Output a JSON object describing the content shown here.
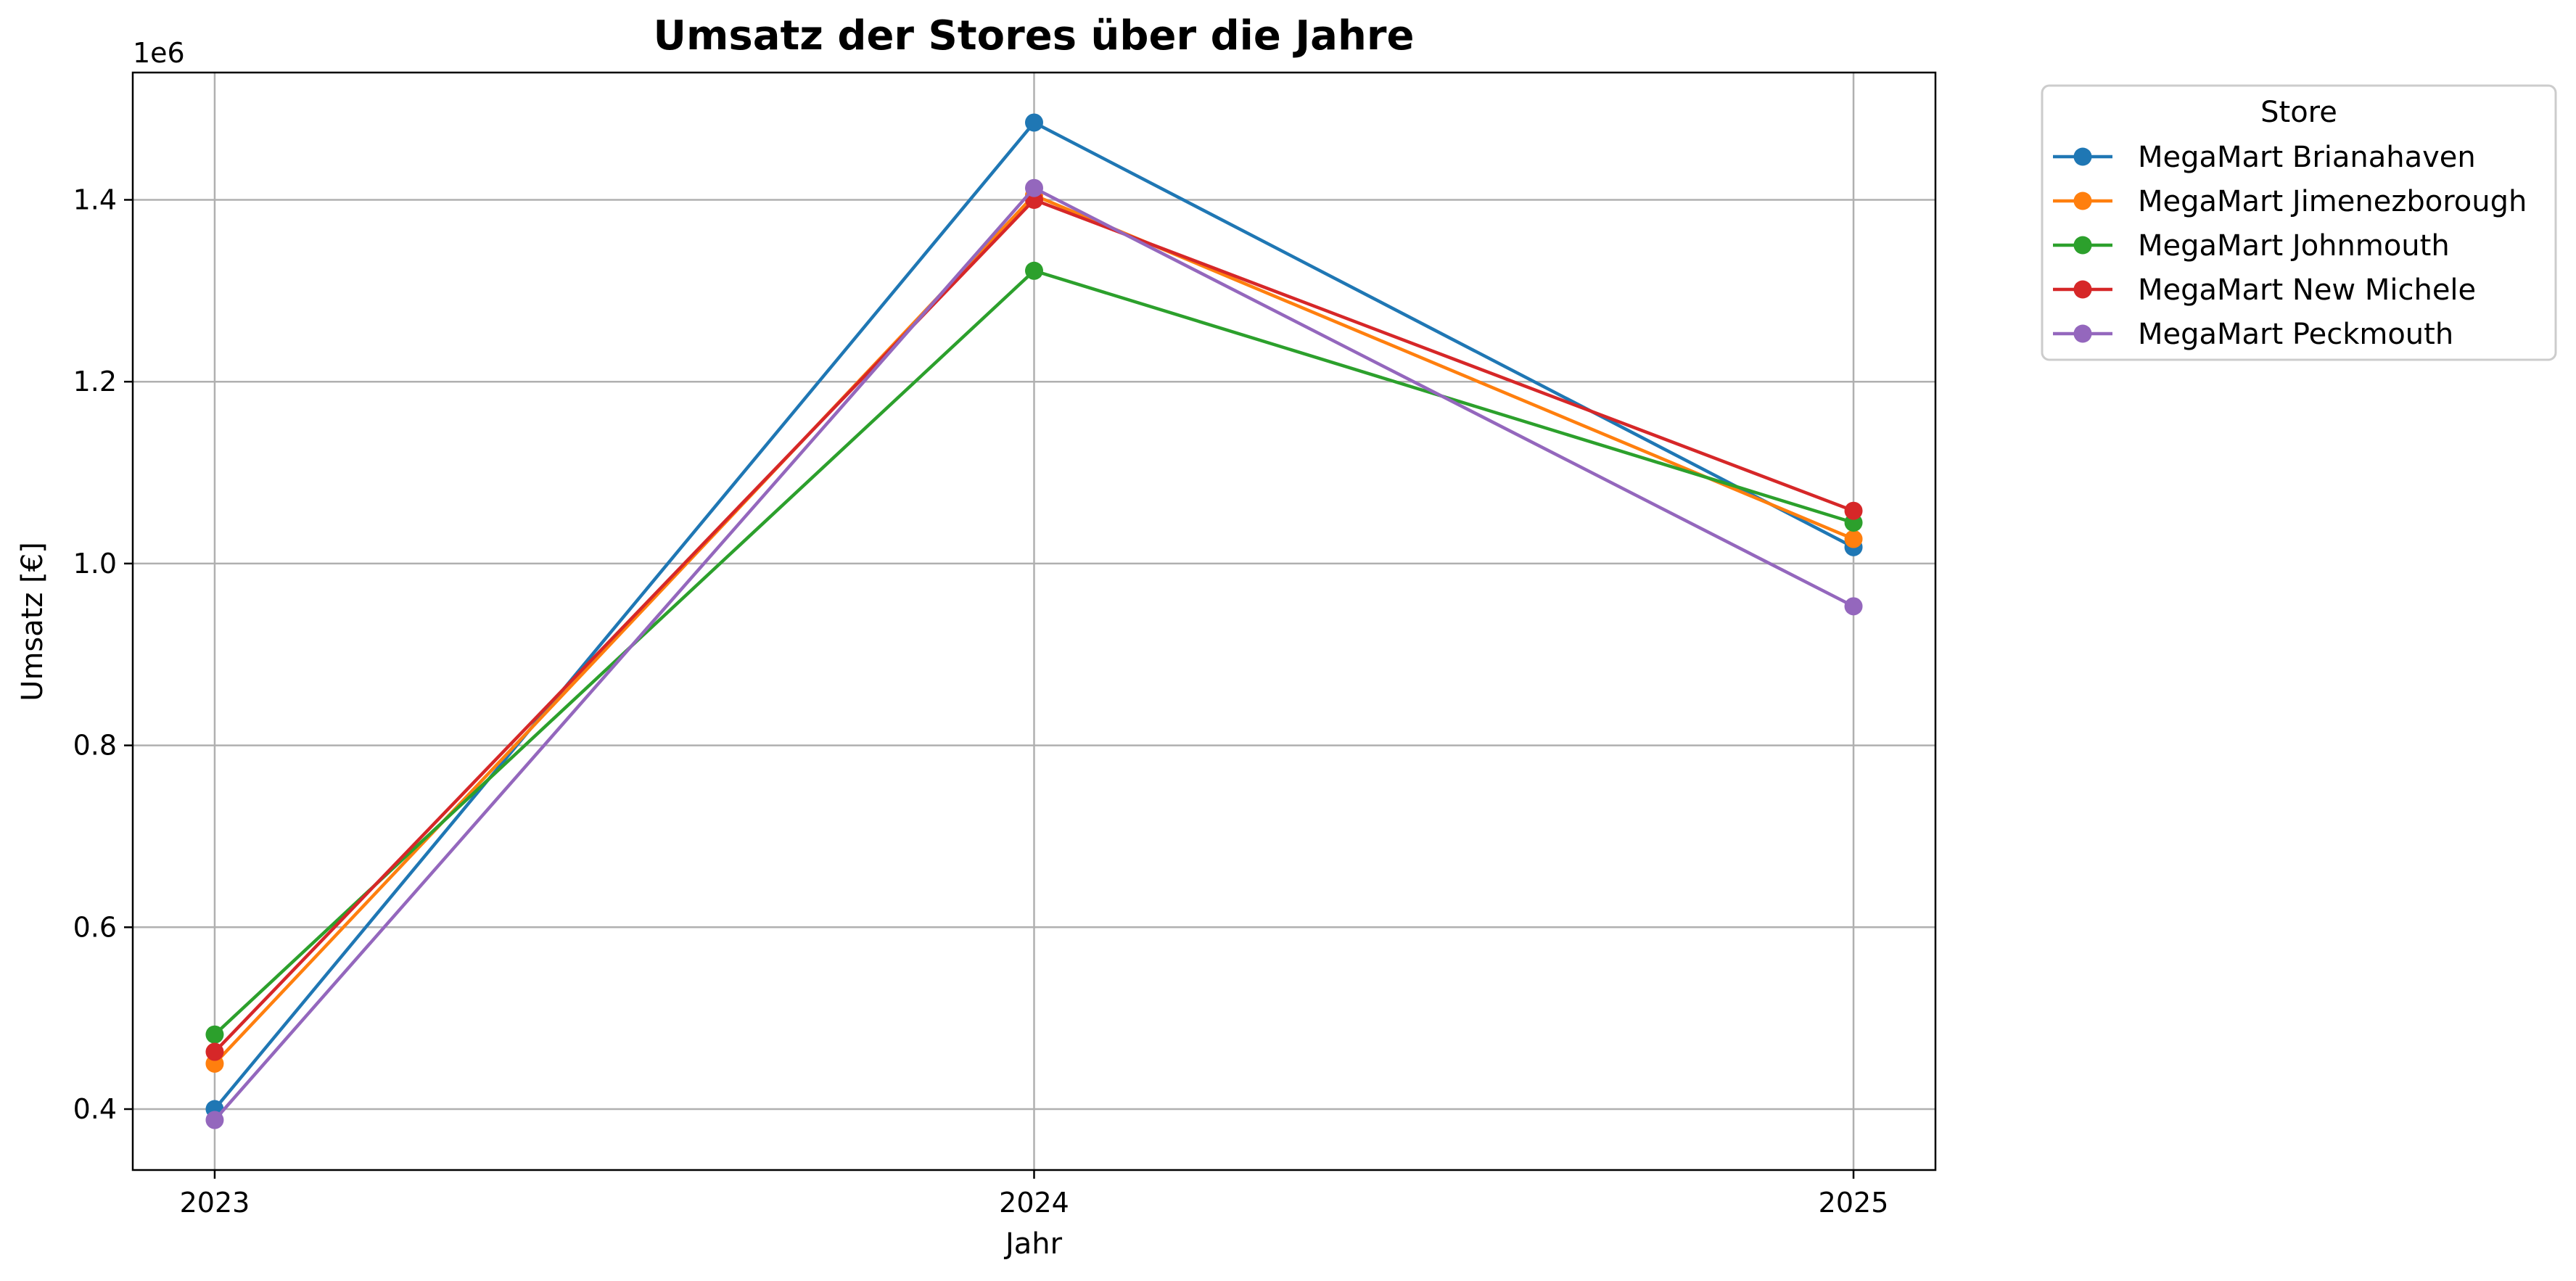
{
  "chart_data": {
    "type": "line",
    "title": "Umsatz der Stores über die Jahre",
    "xlabel": "Jahr",
    "ylabel": "Umsatz [€]",
    "y_multiplier": "1e6",
    "x": [
      2023,
      2024,
      2025
    ],
    "x_tick_labels": [
      "2023",
      "2024",
      "2025"
    ],
    "xlim": [
      2022.9,
      2025.1
    ],
    "ylim": [
      0.333,
      1.54
    ],
    "y_ticks": [
      0.4,
      0.6,
      0.8,
      1.0,
      1.2,
      1.4
    ],
    "y_tick_labels": [
      "0.4",
      "0.6",
      "0.8",
      "1.0",
      "1.2",
      "1.4"
    ],
    "grid": true,
    "legend_title": "Store",
    "legend_position": "outside upper right",
    "series": [
      {
        "name": "MegaMart Brianahaven",
        "color": "#1f77b4",
        "values": [
          0.4,
          1.485,
          1.018
        ]
      },
      {
        "name": "MegaMart Jimenezborough",
        "color": "#ff7f0e",
        "values": [
          0.45,
          1.405,
          1.027
        ]
      },
      {
        "name": "MegaMart Johnmouth",
        "color": "#2ca02c",
        "values": [
          0.482,
          1.322,
          1.045
        ]
      },
      {
        "name": "MegaMart New Michele",
        "color": "#d62728",
        "values": [
          0.463,
          1.4,
          1.058
        ]
      },
      {
        "name": "MegaMart Peckmouth",
        "color": "#9467bd",
        "values": [
          0.388,
          1.413,
          0.953
        ]
      }
    ]
  }
}
